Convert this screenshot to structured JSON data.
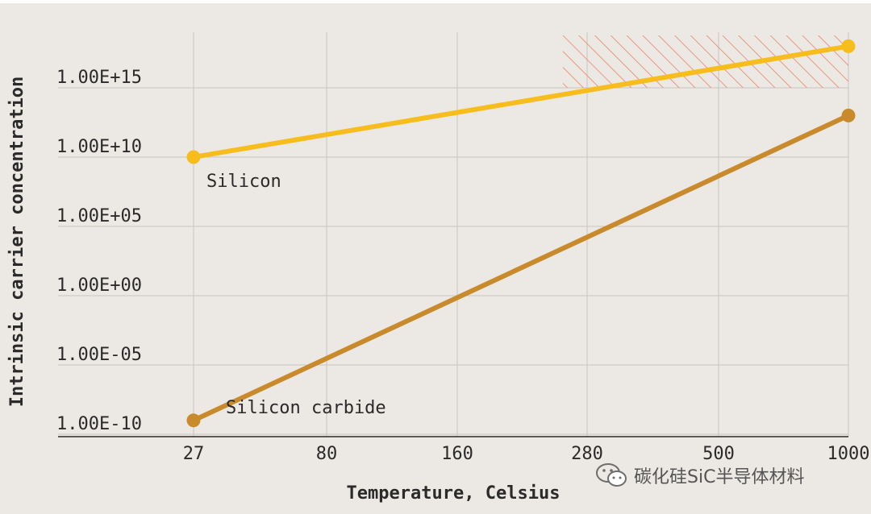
{
  "colors": {
    "background": "#ece8e4",
    "grid": "#c9c6c2",
    "silicon": "#f7bd1d",
    "silicon_carbide": "#c98a2c",
    "hatch": "#e8836a"
  },
  "chart_data": {
    "type": "line",
    "title": "",
    "xlabel": "Temperature, Celsius",
    "ylabel": "Intrinsic carrier concentration",
    "x_categories": [
      "27",
      "80",
      "160",
      "280",
      "500",
      "1000"
    ],
    "y_scale": "log",
    "yticks": [
      "1.00E-10",
      "1.00E-05",
      "1.00E+00",
      "1.00E+05",
      "1.00E+10",
      "1.00E+15"
    ],
    "ylim": [
      1e-10,
      1e+18
    ],
    "grid": true,
    "series": [
      {
        "name": "Silicon",
        "color": "#f7bd1d",
        "x": [
          "27",
          "1000"
        ],
        "y": [
          10000000000.0,
          1e+18
        ]
      },
      {
        "name": "Silicon carbide",
        "color": "#c98a2c",
        "x": [
          "27",
          "1000"
        ],
        "y": [
          1e-09,
          10000000000000.0
        ]
      }
    ],
    "annotations": [
      {
        "kind": "hatched-region",
        "x_from": "280",
        "x_to": "1000",
        "y_from": 1000000000000000.0,
        "y_to": 1e+18
      }
    ]
  },
  "watermark": {
    "text": "碳化硅SiC半导体材料",
    "icon": "wechat-icon"
  }
}
